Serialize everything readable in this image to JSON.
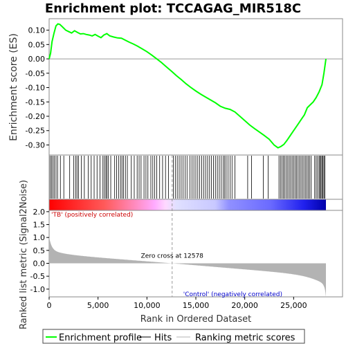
{
  "chart_data": {
    "type": "line",
    "title": "Enrichment plot: TCCAGAG_MIR518C",
    "top_panel": {
      "ylabel": "Enrichment score (ES)",
      "ylim": [
        -0.335,
        0.14
      ],
      "yticks": [
        0.1,
        0.05,
        0.0,
        -0.05,
        -0.1,
        -0.15,
        -0.2,
        -0.25,
        -0.3
      ],
      "ytick_labels": [
        "0.10",
        "0.05",
        "0.00",
        "-0.05",
        "-0.10",
        "-0.15",
        "-0.20",
        "-0.25",
        "-0.30"
      ],
      "line_color": "#00ff00",
      "series": [
        {
          "name": "Enrichment profile",
          "x": [
            0,
            150,
            300,
            500,
            700,
            900,
            1100,
            1400,
            1700,
            2000,
            2300,
            2600,
            2900,
            3200,
            3500,
            3800,
            4100,
            4400,
            4700,
            5000,
            5300,
            5600,
            5900,
            6200,
            6600,
            7000,
            7400,
            7800,
            8200,
            8600,
            9000,
            9500,
            10000,
            10500,
            11000,
            11500,
            12000,
            12578,
            13000,
            13500,
            14000,
            14500,
            15000,
            15500,
            16000,
            16500,
            17000,
            17500,
            18000,
            18500,
            19000,
            19500,
            20000,
            20500,
            21000,
            21500,
            22000,
            22500,
            23000,
            23400,
            23700,
            24000,
            24300,
            24600,
            24900,
            25200,
            25500,
            25800,
            26100,
            26400,
            26700,
            27000,
            27300,
            27600,
            27900,
            28100,
            28300
          ],
          "y": [
            0.0,
            0.02,
            0.06,
            0.09,
            0.115,
            0.122,
            0.12,
            0.11,
            0.1,
            0.095,
            0.09,
            0.098,
            0.092,
            0.087,
            0.088,
            0.085,
            0.083,
            0.08,
            0.085,
            0.079,
            0.074,
            0.083,
            0.088,
            0.08,
            0.076,
            0.073,
            0.072,
            0.065,
            0.058,
            0.052,
            0.045,
            0.035,
            0.025,
            0.013,
            0.0,
            -0.013,
            -0.028,
            -0.045,
            -0.058,
            -0.072,
            -0.087,
            -0.1,
            -0.112,
            -0.123,
            -0.133,
            -0.143,
            -0.153,
            -0.165,
            -0.172,
            -0.176,
            -0.185,
            -0.2,
            -0.215,
            -0.23,
            -0.243,
            -0.255,
            -0.267,
            -0.28,
            -0.3,
            -0.31,
            -0.305,
            -0.298,
            -0.285,
            -0.27,
            -0.255,
            -0.24,
            -0.225,
            -0.21,
            -0.195,
            -0.17,
            -0.16,
            -0.15,
            -0.135,
            -0.115,
            -0.09,
            -0.05,
            0.0
          ]
        }
      ],
      "hits": [
        100,
        250,
        380,
        520,
        700,
        860,
        1150,
        1500,
        2100,
        2500,
        2700,
        2850,
        3000,
        3300,
        3600,
        4000,
        4300,
        4600,
        4900,
        5200,
        5500,
        5650,
        5800,
        5900,
        6050,
        6300,
        6700,
        6900,
        7100,
        7300,
        7450,
        7600,
        7800,
        8000,
        8400,
        8700,
        9000,
        9200,
        9400,
        9700,
        9900,
        10100,
        10400,
        10600,
        10800,
        11000,
        11300,
        11600,
        11900,
        12200,
        12700,
        12900,
        13100,
        13300,
        13500,
        13700,
        13900,
        14100,
        14400,
        14600,
        14800,
        15000,
        15200,
        15400,
        15600,
        15800,
        16000,
        16200,
        16400,
        16600,
        16800,
        17000,
        17200,
        17400,
        17600,
        17800,
        17950,
        18100,
        18300,
        18500,
        18700,
        19000,
        20300,
        20700,
        21900,
        22400,
        23500,
        23650,
        23800,
        23950,
        24100,
        24250,
        24400,
        24550,
        24700,
        24850,
        25000,
        25150,
        25300,
        25450,
        25600,
        25750,
        25900,
        26050,
        26200,
        26350,
        26500,
        26650,
        26800,
        27150,
        27300,
        27450,
        27600,
        27700,
        27800,
        27900,
        28000,
        28100,
        28200
      ]
    },
    "ranked_panel": {
      "ylabel": "Ranked list metric (Signal2Noise)",
      "ylim": [
        -1.3,
        2.05
      ],
      "yticks": [
        2.0,
        1.5,
        1.0,
        0.5,
        0.0,
        -0.5,
        -1.0
      ],
      "ytick_labels": [
        "2.0",
        "1.5",
        "1.0",
        "0.5",
        "0.0",
        "-0.5",
        "-1.0"
      ],
      "xlabel": "Rank in Ordered Dataset",
      "xlim": [
        0,
        30000
      ],
      "xticks": [
        0,
        5000,
        10000,
        15000,
        20000,
        25000
      ],
      "xtick_labels": [
        "0",
        "5,000",
        "10,000",
        "15,000",
        "20,000",
        "25,000"
      ],
      "n_genes": 28300,
      "zero_cross": 12578,
      "fill_color": "#b3b3b3"
    },
    "annotations": {
      "zero_cross_label": "Zero cross at 12578",
      "positive_label": "'TB' (positively correlated)",
      "negative_label": "'Control' (negatively correlated)",
      "positive_color": "#cc0000",
      "negative_color": "#0000cc"
    },
    "legend": {
      "placement": "bottom",
      "items": [
        {
          "label": "Enrichment profile",
          "color": "#00ff00"
        },
        {
          "label": "Hits",
          "color": "#000000"
        },
        {
          "label": "Ranking metric scores",
          "color": "#b3b3b3"
        }
      ]
    }
  }
}
